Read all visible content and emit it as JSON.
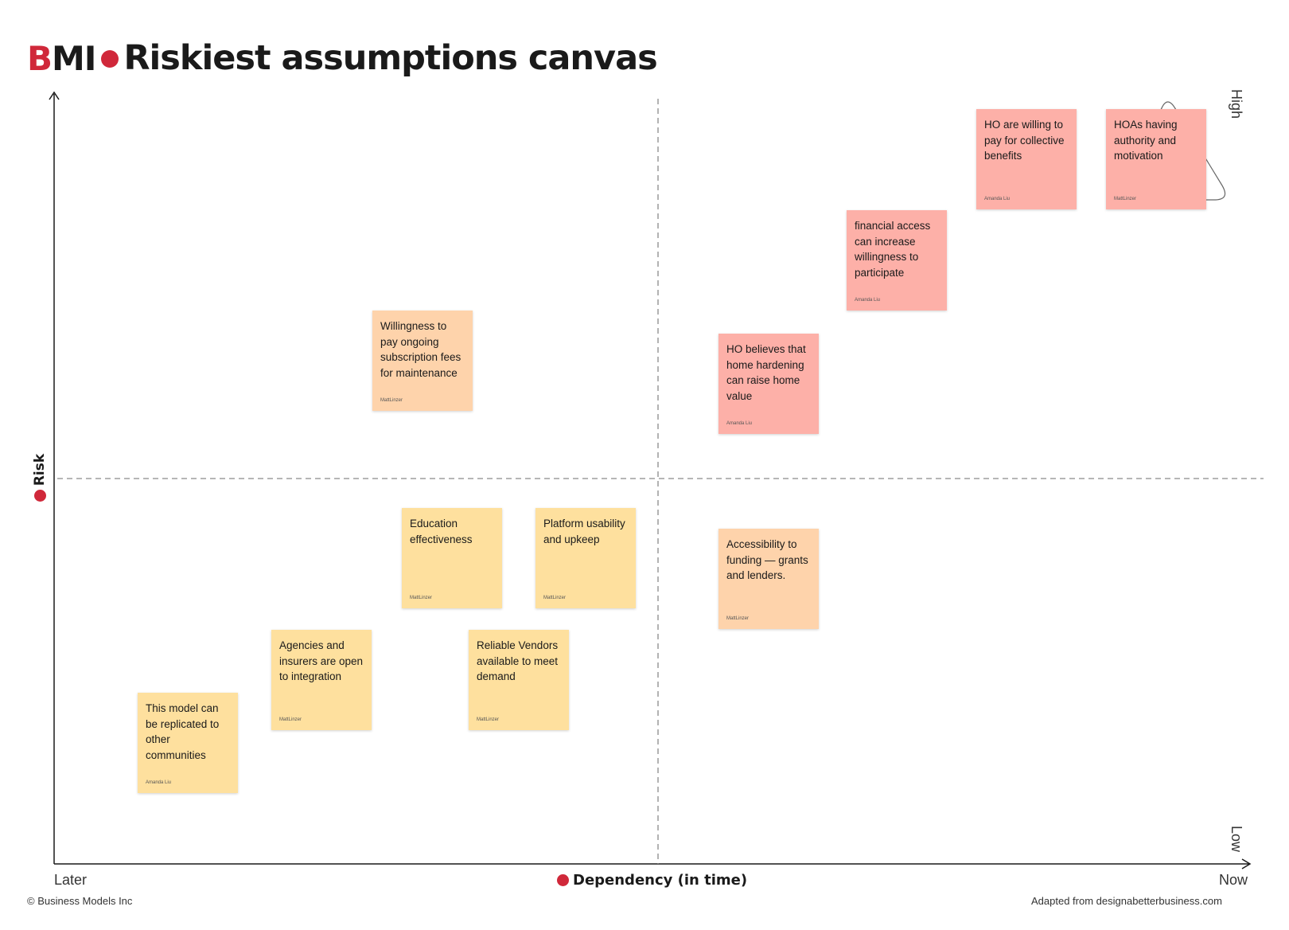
{
  "header": {
    "logo_first": "B",
    "logo_rest": "MI",
    "title": "Riskiest assumptions canvas"
  },
  "axes": {
    "y_label": "Risk",
    "x_label": "Dependency (in time)",
    "y_high": "High",
    "y_low": "Low",
    "x_left": "Later",
    "x_right": "Now"
  },
  "footer": {
    "copyright": "© Business Models Inc",
    "source": "Adapted from designabetterbusiness.com"
  },
  "colors": {
    "accent": "#d0283a",
    "note_red": "#fdb0a8",
    "note_peach": "#fed3ab",
    "note_yellow": "#fee09e",
    "axis": "#1a1a1a",
    "divider": "#8a8a8a"
  },
  "notes": [
    {
      "text": "HO are willing to pay for collective benefits",
      "author": "Amanda Liu",
      "color": "#fdb0a8"
    },
    {
      "text": "HOAs having authority and motivation",
      "author": "MattLinzer",
      "color": "#fdb0a8"
    },
    {
      "text": "financial access can increase willingness to participate",
      "author": "Amanda Liu",
      "color": "#fdb0a8"
    },
    {
      "text": "Willingness to pay ongoing subscription fees for maintenance",
      "author": "MattLinzer",
      "color": "#fed3ab"
    },
    {
      "text": "HO believes that home hardening can raise home value",
      "author": "Amanda Liu",
      "color": "#fdb0a8"
    },
    {
      "text": "Education effectiveness",
      "author": "MattLinzer",
      "color": "#fee09e"
    },
    {
      "text": "Platform usability and upkeep",
      "author": "MattLinzer",
      "color": "#fee09e"
    },
    {
      "text": "Accessibility to funding — grants and lenders.",
      "author": "MattLinzer",
      "color": "#fed3ab"
    },
    {
      "text": "Agencies and insurers are open to integration",
      "author": "MattLinzer",
      "color": "#fee09e"
    },
    {
      "text": "Reliable Vendors available to meet demand",
      "author": "MattLinzer",
      "color": "#fee09e"
    },
    {
      "text": "This model can be replicated to other communities",
      "author": "Amanda Liu",
      "color": "#fee09e"
    }
  ]
}
